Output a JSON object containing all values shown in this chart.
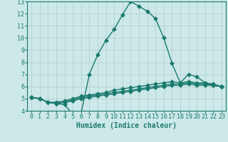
{
  "title": "",
  "xlabel": "Humidex (Indice chaleur)",
  "ylabel": "",
  "bg_color": "#cce8e8",
  "grid_color": "#b0cccc",
  "line_color": "#1a7a6e",
  "xlim": [
    -0.5,
    23.5
  ],
  "ylim": [
    4,
    13
  ],
  "xticks": [
    0,
    1,
    2,
    3,
    4,
    5,
    6,
    7,
    8,
    9,
    10,
    11,
    12,
    13,
    14,
    15,
    16,
    17,
    18,
    19,
    20,
    21,
    22,
    23
  ],
  "yticks": [
    4,
    5,
    6,
    7,
    8,
    9,
    10,
    11,
    12,
    13
  ],
  "lines": [
    [
      5.1,
      5.0,
      4.7,
      4.6,
      4.5,
      3.7,
      3.8,
      7.0,
      8.6,
      9.8,
      10.7,
      11.9,
      13.0,
      12.6,
      12.2,
      11.6,
      10.0,
      7.9,
      6.3,
      7.0,
      6.8,
      6.3,
      6.1,
      6.0
    ],
    [
      5.1,
      5.0,
      4.7,
      4.6,
      4.7,
      4.9,
      5.1,
      5.2,
      5.3,
      5.4,
      5.5,
      5.6,
      5.7,
      5.8,
      5.9,
      6.0,
      6.1,
      6.2,
      6.2,
      6.3,
      6.2,
      6.2,
      6.1,
      6.0
    ],
    [
      5.1,
      5.0,
      4.7,
      4.6,
      4.7,
      4.8,
      5.0,
      5.1,
      5.2,
      5.3,
      5.4,
      5.5,
      5.6,
      5.7,
      5.8,
      5.9,
      6.0,
      6.1,
      6.1,
      6.2,
      6.1,
      6.1,
      6.1,
      6.0
    ],
    [
      5.1,
      5.0,
      4.7,
      4.7,
      4.8,
      5.0,
      5.2,
      5.3,
      5.4,
      5.5,
      5.7,
      5.8,
      5.9,
      6.0,
      6.1,
      6.2,
      6.3,
      6.4,
      6.3,
      6.4,
      6.3,
      6.3,
      6.2,
      6.0
    ]
  ],
  "marker": "D",
  "markersize": 2.5,
  "linewidth": 1.0,
  "label_fontsize": 7,
  "tick_fontsize": 6
}
